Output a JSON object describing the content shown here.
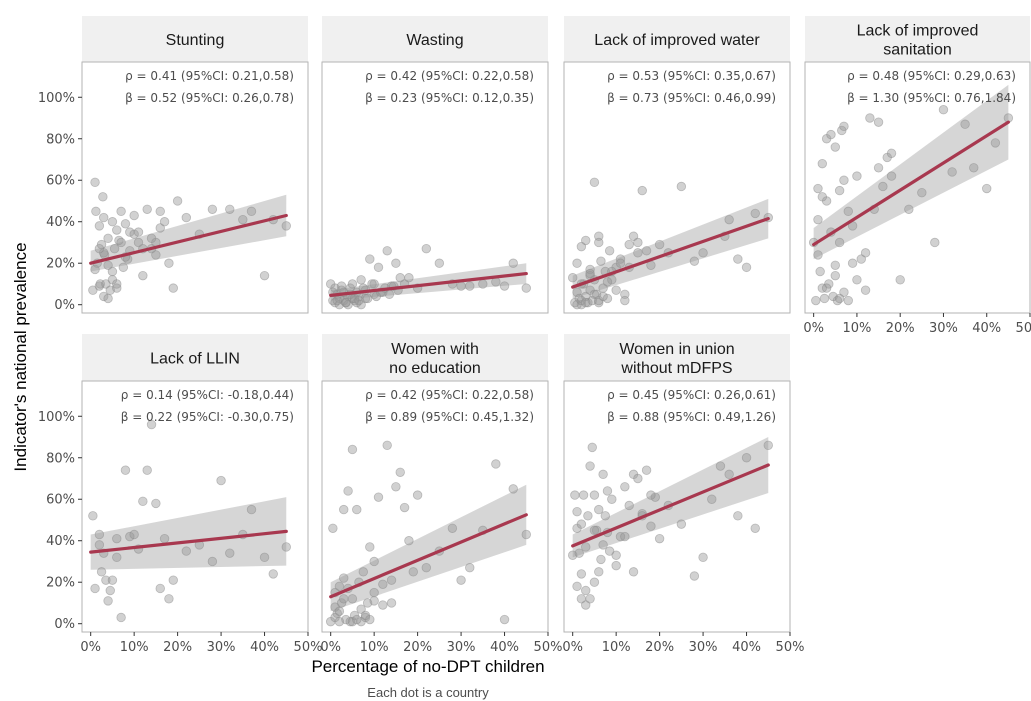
{
  "chart_data": {
    "type": "scatter",
    "xlabel": "Percentage of no-DPT children",
    "ylabel": "Indicator's national prevalence",
    "caption": "Each dot is a country",
    "xlim": [
      -0.02,
      0.5
    ],
    "ylim": [
      -0.04,
      1.17
    ],
    "x_ticks": [
      0,
      0.1,
      0.2,
      0.3,
      0.4,
      0.5
    ],
    "x_tick_labels": [
      "0%",
      "10%",
      "20%",
      "30%",
      "40%",
      "50%"
    ],
    "y_ticks": [
      0,
      0.2,
      0.4,
      0.6,
      0.8,
      1.0
    ],
    "y_tick_labels": [
      "0%",
      "20%",
      "40%",
      "60%",
      "80%",
      "100%"
    ],
    "grid": false,
    "colors": {
      "strip": "#f0f0f0",
      "panel_border": "#b3b3b3",
      "point": "#999999",
      "fit_line": "#a8384f",
      "ribbon": "#c8c8c8"
    },
    "panels": [
      {
        "title": [
          "Stunting"
        ],
        "rho": "ρ = 0.41 (95%CI: 0.21,0.58)",
        "beta": "β = 0.52 (95%CI: 0.26,0.78)",
        "fit": {
          "x": [
            0.0,
            0.45
          ],
          "y": [
            0.2,
            0.43
          ],
          "lower": [
            0.16,
            0.33
          ],
          "upper": [
            0.26,
            0.53
          ]
        },
        "x": [
          0.005,
          0.01,
          0.012,
          0.015,
          0.02,
          0.02,
          0.022,
          0.025,
          0.028,
          0.03,
          0.03,
          0.032,
          0.035,
          0.04,
          0.04,
          0.045,
          0.05,
          0.05,
          0.055,
          0.06,
          0.06,
          0.065,
          0.07,
          0.075,
          0.08,
          0.085,
          0.09,
          0.1,
          0.11,
          0.12,
          0.13,
          0.14,
          0.15,
          0.16,
          0.17,
          0.18,
          0.2,
          0.22,
          0.25,
          0.28,
          0.32,
          0.35,
          0.37,
          0.4,
          0.42,
          0.45,
          0.01,
          0.03,
          0.05,
          0.08,
          0.1,
          0.12,
          0.15,
          0.02,
          0.04,
          0.06,
          0.07,
          0.09,
          0.11,
          0.14,
          0.16,
          0.19
        ],
        "y": [
          0.07,
          0.59,
          0.45,
          0.2,
          0.09,
          0.38,
          0.1,
          0.29,
          0.52,
          0.42,
          0.04,
          0.24,
          0.1,
          0.32,
          0.03,
          0.07,
          0.4,
          0.16,
          0.27,
          0.36,
          0.08,
          0.31,
          0.45,
          0.18,
          0.39,
          0.22,
          0.35,
          0.43,
          0.3,
          0.14,
          0.46,
          0.27,
          0.3,
          0.37,
          0.4,
          0.2,
          0.5,
          0.42,
          0.34,
          0.46,
          0.46,
          0.41,
          0.45,
          0.14,
          0.41,
          0.38,
          0.17,
          0.25,
          0.12,
          0.23,
          0.34,
          0.27,
          0.24,
          0.27,
          0.19,
          0.1,
          0.3,
          0.26,
          0.35,
          0.32,
          0.45,
          0.08
        ]
      },
      {
        "title": [
          "Wasting"
        ],
        "rho": "ρ = 0.42 (95%CI: 0.22,0.58)",
        "beta": "β = 0.23 (95%CI: 0.12,0.35)",
        "fit": {
          "x": [
            0.0,
            0.45
          ],
          "y": [
            0.045,
            0.15
          ],
          "lower": [
            0.02,
            0.1
          ],
          "upper": [
            0.07,
            0.2
          ]
        },
        "x": [
          0.0,
          0.005,
          0.01,
          0.01,
          0.015,
          0.02,
          0.02,
          0.025,
          0.03,
          0.03,
          0.035,
          0.04,
          0.04,
          0.045,
          0.05,
          0.05,
          0.055,
          0.06,
          0.06,
          0.065,
          0.07,
          0.07,
          0.08,
          0.08,
          0.09,
          0.1,
          0.1,
          0.11,
          0.12,
          0.13,
          0.14,
          0.15,
          0.16,
          0.17,
          0.18,
          0.2,
          0.22,
          0.25,
          0.28,
          0.3,
          0.32,
          0.35,
          0.38,
          0.4,
          0.42,
          0.45,
          0.005,
          0.015,
          0.025,
          0.035,
          0.045,
          0.055,
          0.065,
          0.075,
          0.085,
          0.095,
          0.105,
          0.115,
          0.125,
          0.135,
          0.145,
          0.155
        ],
        "y": [
          0.1,
          0.02,
          0.08,
          0.01,
          0.05,
          0.03,
          0.0,
          0.09,
          0.02,
          0.06,
          0.01,
          0.04,
          0.0,
          0.08,
          0.03,
          0.1,
          0.02,
          0.06,
          0.01,
          0.04,
          0.12,
          0.0,
          0.07,
          0.03,
          0.22,
          0.05,
          0.1,
          0.18,
          0.06,
          0.26,
          0.09,
          0.2,
          0.13,
          0.1,
          0.13,
          0.08,
          0.27,
          0.2,
          0.1,
          0.09,
          0.09,
          0.1,
          0.11,
          0.09,
          0.2,
          0.08,
          0.06,
          0.02,
          0.07,
          0.01,
          0.05,
          0.03,
          0.02,
          0.08,
          0.03,
          0.1,
          0.04,
          0.06,
          0.08,
          0.05,
          0.09,
          0.07
        ]
      },
      {
        "title": [
          "Lack of improved water"
        ],
        "rho": "ρ = 0.53 (95%CI: 0.35,0.67)",
        "beta": "β = 0.73 (95%CI: 0.46,0.99)",
        "fit": {
          "x": [
            0.0,
            0.45
          ],
          "y": [
            0.085,
            0.415
          ],
          "lower": [
            0.03,
            0.32
          ],
          "upper": [
            0.14,
            0.51
          ]
        },
        "x": [
          0.0,
          0.005,
          0.01,
          0.01,
          0.015,
          0.02,
          0.02,
          0.025,
          0.03,
          0.03,
          0.035,
          0.04,
          0.04,
          0.045,
          0.05,
          0.05,
          0.055,
          0.06,
          0.06,
          0.065,
          0.07,
          0.075,
          0.08,
          0.085,
          0.09,
          0.1,
          0.11,
          0.12,
          0.13,
          0.14,
          0.15,
          0.16,
          0.17,
          0.18,
          0.2,
          0.22,
          0.25,
          0.28,
          0.3,
          0.35,
          0.36,
          0.38,
          0.4,
          0.42,
          0.45,
          0.01,
          0.02,
          0.03,
          0.04,
          0.05,
          0.06,
          0.07,
          0.08,
          0.1,
          0.12,
          0.15,
          0.02,
          0.04,
          0.06,
          0.09,
          0.11,
          0.13
        ],
        "y": [
          0.13,
          0.01,
          0.06,
          0.2,
          0.03,
          0.28,
          0.0,
          0.1,
          0.04,
          0.31,
          0.01,
          0.07,
          0.17,
          0.02,
          0.59,
          0.12,
          0.05,
          0.33,
          0.01,
          0.21,
          0.08,
          0.16,
          0.03,
          0.26,
          0.12,
          0.18,
          0.22,
          0.05,
          0.29,
          0.33,
          0.3,
          0.55,
          0.26,
          0.19,
          0.29,
          0.25,
          0.57,
          0.21,
          0.25,
          0.33,
          0.41,
          0.22,
          0.18,
          0.44,
          0.42,
          0.0,
          0.02,
          0.01,
          0.14,
          0.05,
          0.02,
          0.04,
          0.11,
          0.07,
          0.02,
          0.25,
          0.1,
          0.15,
          0.3,
          0.16,
          0.2,
          0.18
        ]
      },
      {
        "title": [
          "Lack of improved",
          "sanitation"
        ],
        "rho": "ρ = 0.48 (95%CI: 0.29,0.63)",
        "beta": "β = 1.30 (95%CI: 0.76,1.84)",
        "fit": {
          "x": [
            0.0,
            0.45
          ],
          "y": [
            0.29,
            0.88
          ],
          "lower": [
            0.22,
            0.7
          ],
          "upper": [
            0.37,
            1.06
          ]
        },
        "x": [
          0.0,
          0.005,
          0.01,
          0.01,
          0.015,
          0.02,
          0.02,
          0.025,
          0.03,
          0.03,
          0.035,
          0.04,
          0.04,
          0.045,
          0.05,
          0.05,
          0.055,
          0.06,
          0.06,
          0.065,
          0.07,
          0.07,
          0.08,
          0.08,
          0.09,
          0.1,
          0.1,
          0.11,
          0.12,
          0.13,
          0.14,
          0.15,
          0.16,
          0.17,
          0.18,
          0.2,
          0.22,
          0.25,
          0.28,
          0.3,
          0.32,
          0.35,
          0.37,
          0.4,
          0.42,
          0.45,
          0.01,
          0.02,
          0.03,
          0.05,
          0.06,
          0.07,
          0.09,
          0.12,
          0.15,
          0.18
        ],
        "y": [
          0.3,
          0.02,
          0.56,
          0.24,
          0.16,
          0.08,
          0.68,
          0.03,
          0.5,
          0.8,
          0.1,
          0.35,
          0.82,
          0.04,
          0.14,
          0.76,
          0.02,
          0.55,
          0.3,
          0.84,
          0.06,
          0.86,
          0.45,
          0.02,
          0.2,
          0.62,
          0.12,
          0.22,
          0.25,
          0.9,
          0.46,
          0.88,
          0.57,
          0.71,
          0.62,
          0.12,
          0.46,
          0.54,
          0.3,
          0.94,
          0.64,
          0.87,
          0.66,
          0.56,
          0.78,
          0.9,
          0.41,
          0.52,
          0.08,
          0.19,
          0.03,
          0.6,
          0.38,
          0.07,
          0.66,
          0.73
        ]
      },
      {
        "title": [
          "Lack of LLIN"
        ],
        "rho": "ρ = 0.14 (95%CI: -0.18,0.44)",
        "beta": "β = 0.22 (95%CI: -0.30,0.75)",
        "fit": {
          "x": [
            0.0,
            0.45
          ],
          "y": [
            0.345,
            0.445
          ],
          "lower": [
            0.26,
            0.28
          ],
          "upper": [
            0.43,
            0.61
          ]
        },
        "x": [
          0.005,
          0.01,
          0.02,
          0.025,
          0.03,
          0.035,
          0.04,
          0.045,
          0.05,
          0.06,
          0.07,
          0.08,
          0.09,
          0.1,
          0.11,
          0.12,
          0.13,
          0.14,
          0.15,
          0.16,
          0.17,
          0.18,
          0.19,
          0.22,
          0.25,
          0.28,
          0.3,
          0.32,
          0.35,
          0.37,
          0.4,
          0.42,
          0.45,
          0.02,
          0.06
        ],
        "y": [
          0.52,
          0.17,
          0.43,
          0.25,
          0.34,
          0.21,
          0.11,
          0.16,
          0.21,
          0.41,
          0.03,
          0.74,
          0.42,
          0.43,
          0.36,
          0.59,
          0.74,
          0.96,
          0.58,
          0.17,
          0.41,
          0.12,
          0.21,
          0.35,
          0.38,
          0.3,
          0.69,
          0.34,
          0.43,
          0.55,
          0.32,
          0.24,
          0.37,
          0.38,
          0.32
        ]
      },
      {
        "title": [
          "Women with",
          "no education"
        ],
        "rho": "ρ = 0.42 (95%CI: 0.22,0.58)",
        "beta": "β = 0.89 (95%CI: 0.45,1.32)",
        "fit": {
          "x": [
            0.0,
            0.45
          ],
          "y": [
            0.13,
            0.525
          ],
          "lower": [
            0.06,
            0.38
          ],
          "upper": [
            0.2,
            0.67
          ]
        },
        "x": [
          0.0,
          0.005,
          0.01,
          0.01,
          0.015,
          0.02,
          0.02,
          0.025,
          0.03,
          0.03,
          0.035,
          0.04,
          0.045,
          0.05,
          0.05,
          0.055,
          0.06,
          0.065,
          0.07,
          0.075,
          0.08,
          0.085,
          0.09,
          0.1,
          0.1,
          0.11,
          0.12,
          0.13,
          0.14,
          0.15,
          0.16,
          0.17,
          0.18,
          0.19,
          0.2,
          0.22,
          0.25,
          0.28,
          0.3,
          0.32,
          0.35,
          0.38,
          0.4,
          0.42,
          0.45,
          0.01,
          0.02,
          0.03,
          0.04,
          0.05,
          0.06,
          0.07,
          0.08,
          0.09,
          0.1,
          0.12,
          0.14
        ],
        "y": [
          0.01,
          0.46,
          0.15,
          0.03,
          0.05,
          0.18,
          0.01,
          0.1,
          0.55,
          0.22,
          0.02,
          0.64,
          0.01,
          0.84,
          0.12,
          0.04,
          0.55,
          0.2,
          0.01,
          0.25,
          0.03,
          0.1,
          0.37,
          0.3,
          0.11,
          0.61,
          0.09,
          0.86,
          0.21,
          0.66,
          0.73,
          0.56,
          0.4,
          0.25,
          0.62,
          0.27,
          0.35,
          0.46,
          0.21,
          0.27,
          0.45,
          0.77,
          0.02,
          0.65,
          0.43,
          0.08,
          0.06,
          0.12,
          0.17,
          0.01,
          0.02,
          0.07,
          0.04,
          0.02,
          0.15,
          0.19,
          0.1
        ]
      },
      {
        "title": [
          "Women in union",
          "without mDFPS"
        ],
        "rho": "ρ = 0.45 (95%CI: 0.26,0.61)",
        "beta": "β = 0.88 (95%CI: 0.49,1.26)",
        "fit": {
          "x": [
            0.0,
            0.45
          ],
          "y": [
            0.375,
            0.765
          ],
          "lower": [
            0.32,
            0.63
          ],
          "upper": [
            0.43,
            0.9
          ]
        },
        "x": [
          0.0,
          0.005,
          0.01,
          0.01,
          0.015,
          0.02,
          0.02,
          0.025,
          0.03,
          0.03,
          0.035,
          0.04,
          0.04,
          0.045,
          0.05,
          0.05,
          0.055,
          0.06,
          0.065,
          0.07,
          0.075,
          0.08,
          0.085,
          0.09,
          0.1,
          0.11,
          0.12,
          0.13,
          0.14,
          0.15,
          0.16,
          0.17,
          0.18,
          0.19,
          0.2,
          0.22,
          0.25,
          0.28,
          0.3,
          0.32,
          0.34,
          0.36,
          0.38,
          0.4,
          0.42,
          0.45,
          0.01,
          0.02,
          0.03,
          0.05,
          0.06,
          0.07,
          0.08,
          0.1,
          0.12,
          0.14,
          0.16,
          0.18
        ],
        "y": [
          0.33,
          0.62,
          0.46,
          0.18,
          0.34,
          0.24,
          0.48,
          0.62,
          0.16,
          0.37,
          0.52,
          0.76,
          0.12,
          0.85,
          0.2,
          0.62,
          0.45,
          0.55,
          0.31,
          0.72,
          0.52,
          0.64,
          0.35,
          0.6,
          0.28,
          0.42,
          0.66,
          0.57,
          0.72,
          0.7,
          0.53,
          0.74,
          0.47,
          0.61,
          0.41,
          0.57,
          0.48,
          0.23,
          0.32,
          0.6,
          0.76,
          0.72,
          0.52,
          0.8,
          0.46,
          0.86,
          0.54,
          0.12,
          0.09,
          0.45,
          0.25,
          0.38,
          0.44,
          0.33,
          0.42,
          0.25,
          0.52,
          0.62
        ]
      }
    ]
  }
}
